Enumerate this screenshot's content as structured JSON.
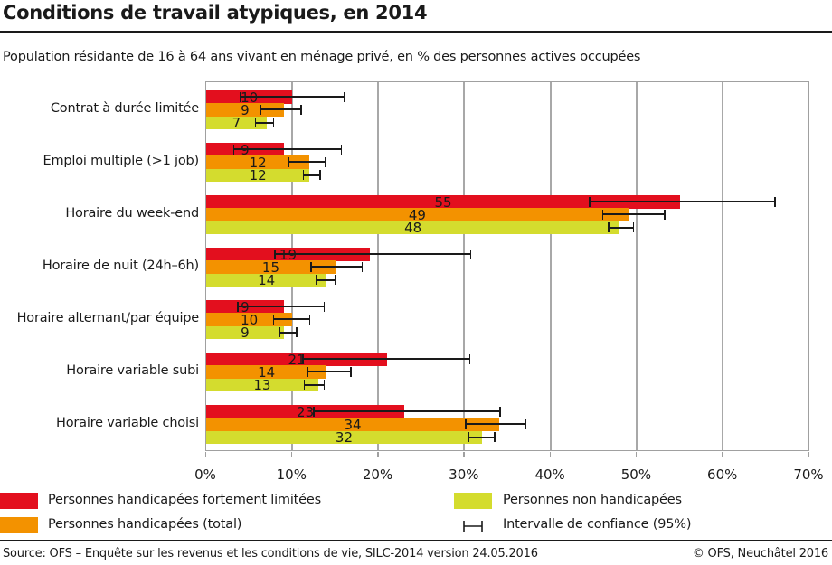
{
  "header": {
    "title": "Conditions de travail atypiques, en 2014",
    "subtitle": "Population résidante de 16 à 64 ans vivant en ménage privé, en % des personnes actives occupées"
  },
  "colors": {
    "red": "#e30f1e",
    "orange": "#f39200",
    "green": "#d4dc2e",
    "grid": "#a8a8a8",
    "text": "#1a1a1a"
  },
  "legend": {
    "items": [
      {
        "label": "Personnes handicapées fortement limitées",
        "color": "#e30f1e"
      },
      {
        "label": "Personnes handicapées (total)",
        "color": "#f39200"
      },
      {
        "label": "Personnes non handicapées",
        "color": "#d4dc2e"
      },
      {
        "label": "Intervalle de confiance (95%)",
        "icon": "error-bar-icon"
      }
    ]
  },
  "footer": {
    "source": "Source: OFS – Enquête sur les revenus et les conditions de vie, SILC-2014 version 24.05.2016",
    "copyright": "© OFS, Neuchâtel 2016"
  },
  "chart_data": {
    "type": "bar",
    "orientation": "horizontal",
    "title": "Conditions de travail atypiques, en 2014",
    "subtitle": "Population résidante de 16 à 64 ans vivant en ménage privé, en % des personnes actives occupées",
    "xlabel": "",
    "ylabel": "",
    "xlim": [
      0,
      70
    ],
    "x_ticks": [
      "0%",
      "10%",
      "20%",
      "30%",
      "40%",
      "50%",
      "60%",
      "70%"
    ],
    "grid": true,
    "legend_position": "bottom",
    "categories": [
      "Contrat à durée limitée",
      "Emploi multiple (>1 job)",
      "Horaire du week-end",
      "Horaire de nuit (24h–6h)",
      "Horaire alternant/par équipe",
      "Horaire variable subi",
      "Horaire variable choisi"
    ],
    "series": [
      {
        "name": "Personnes handicapées fortement limitées",
        "color": "#e30f1e",
        "values": [
          10,
          9,
          55,
          19,
          9,
          21,
          23
        ],
        "ci_low": [
          4.0,
          3.2,
          44.5,
          8.0,
          3.7,
          11.2,
          12.5
        ],
        "ci_high": [
          16.0,
          15.7,
          66.0,
          30.7,
          13.7,
          30.6,
          34.1
        ]
      },
      {
        "name": "Personnes handicapées (total)",
        "color": "#f39200",
        "values": [
          9,
          12,
          49,
          15,
          10,
          14,
          34
        ],
        "ci_low": [
          6.3,
          9.6,
          46.0,
          12.2,
          7.8,
          11.8,
          30.1
        ],
        "ci_high": [
          11.0,
          13.8,
          53.2,
          18.1,
          12.0,
          16.8,
          37.1
        ]
      },
      {
        "name": "Personnes non handicapées",
        "color": "#d4dc2e",
        "values": [
          7,
          12,
          48,
          14,
          9,
          13,
          32
        ],
        "ci_low": [
          5.7,
          11.3,
          46.7,
          12.8,
          8.5,
          11.4,
          30.5
        ],
        "ci_high": [
          7.8,
          13.2,
          49.6,
          15.0,
          10.5,
          13.7,
          33.5
        ]
      }
    ],
    "annotations": [
      "Intervalle de confiance (95%)"
    ]
  }
}
